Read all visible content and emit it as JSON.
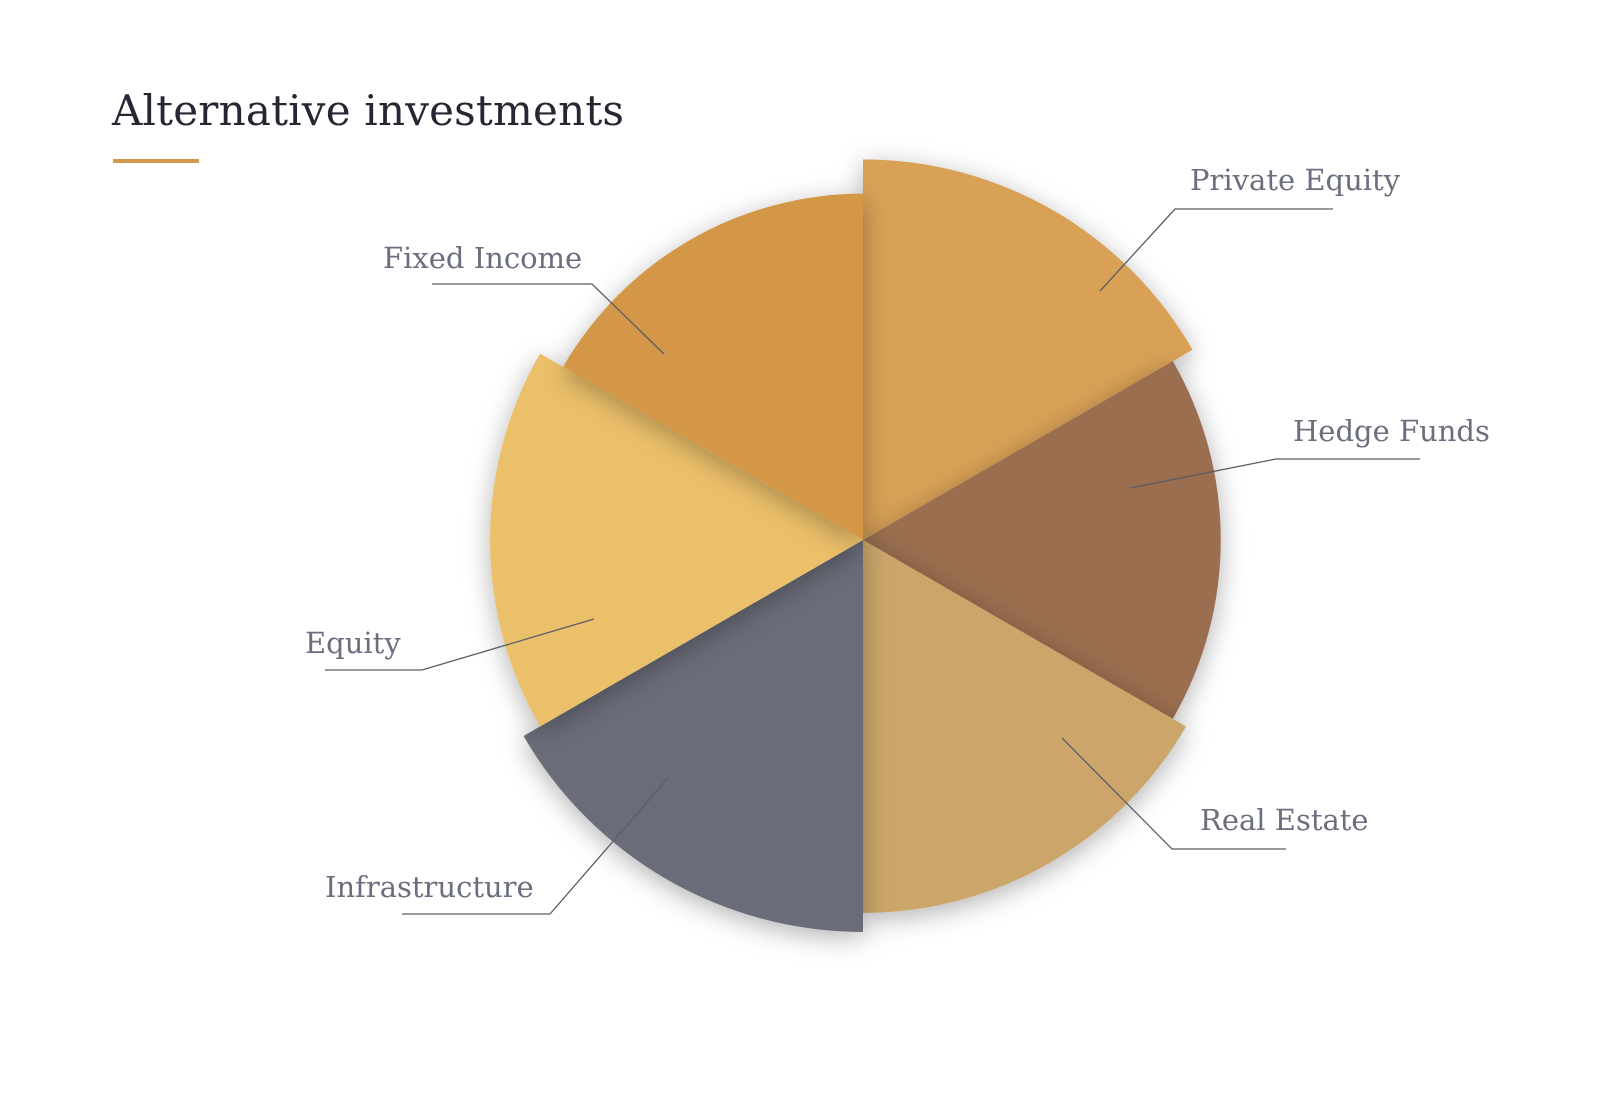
{
  "chart_data": {
    "type": "pie",
    "variant": "polar-area",
    "title": "Alternative investments",
    "categories": [
      "Private Equity",
      "Hedge Funds",
      "Real Estate",
      "Infrastructure",
      "Equity",
      "Fixed Income"
    ],
    "values": [
      1,
      1,
      1,
      1,
      1,
      1
    ],
    "radius_values": [
      100,
      94,
      98,
      103,
      98,
      91
    ],
    "colors": [
      "#d8a157",
      "#9a6e50",
      "#cca56b",
      "#6a6c79",
      "#ebc06a",
      "#d49747"
    ],
    "accent_color": "#d39a4b",
    "legend": "none",
    "labels_position": "outside-with-leader-lines"
  }
}
